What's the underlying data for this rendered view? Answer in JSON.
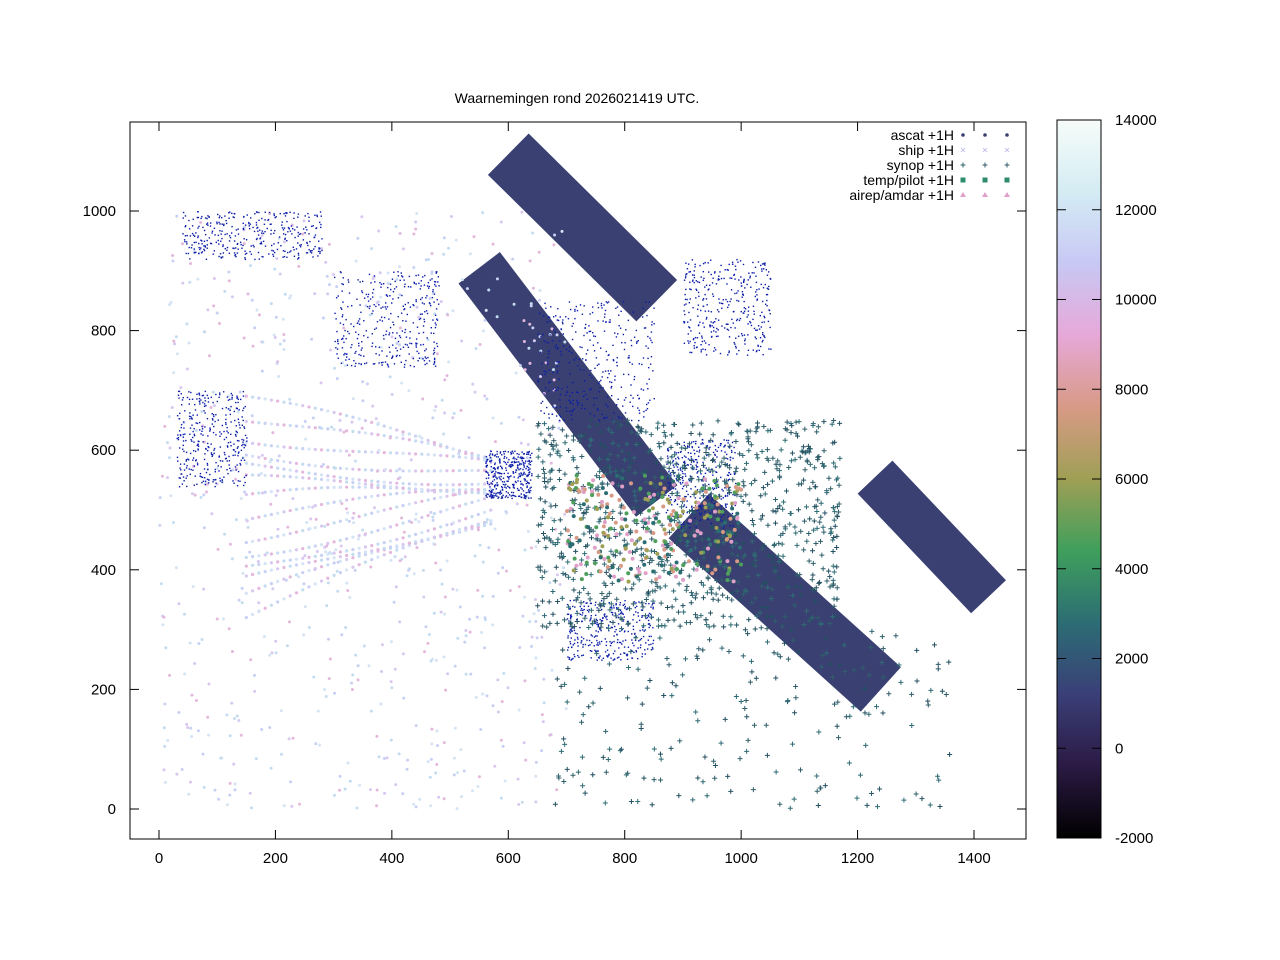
{
  "chart_data": {
    "type": "scatter",
    "title": "Waarnemingen rond 2026021419 UTC.",
    "xlabel": "",
    "ylabel": "",
    "xlim": [
      -50,
      1495
    ],
    "ylim": [
      -50,
      1145
    ],
    "x_ticks": [
      0,
      200,
      400,
      600,
      800,
      1000,
      1200,
      1400
    ],
    "y_ticks": [
      0,
      200,
      400,
      600,
      800,
      1000
    ],
    "grid": false,
    "legend_position": "top-right",
    "series": [
      {
        "name": "ascat +1H",
        "marker": "dot",
        "color": "#3a4172"
      },
      {
        "name": "ship +1H",
        "marker": "cross",
        "color": "#c4c4ee"
      },
      {
        "name": "synop +1H",
        "marker": "plus",
        "color": "#2f5e6a"
      },
      {
        "name": "temp/pilot +1H",
        "marker": "filled-square",
        "color": "#2e8c6c"
      },
      {
        "name": "airep/amdar +1H",
        "marker": "triangle",
        "color": "#e0a0c8"
      }
    ],
    "colorbar": {
      "min": -2000,
      "max": 14000,
      "ticks": [
        14000,
        12000,
        10000,
        8000,
        6000,
        4000,
        2000,
        0,
        -2000
      ],
      "colors": [
        "#000000",
        "#2b1a44",
        "#3a3f78",
        "#2c6d74",
        "#3f9f5c",
        "#9f9f55",
        "#d89a86",
        "#e6a8d8",
        "#c8c8f4",
        "#d4ecf4",
        "#f6fcf8"
      ]
    }
  }
}
